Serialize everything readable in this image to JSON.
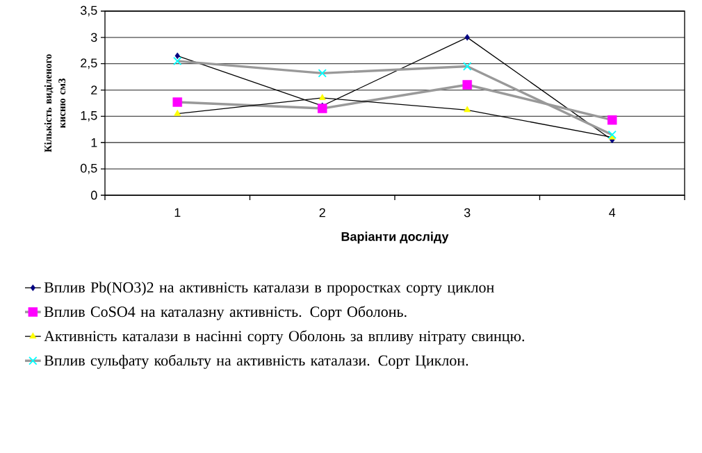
{
  "chart_data": {
    "type": "line",
    "xlabel": "Варіанти досліду",
    "ylabel": "Кількість виділеного кисню см3",
    "categories": [
      "1",
      "2",
      "3",
      "4"
    ],
    "series": [
      {
        "name": "Вплив Pb(NO3)2 на активність каталази в проростках сорту циклон",
        "color": "#000080",
        "marker": "diamond",
        "values": [
          2.65,
          1.7,
          3.0,
          1.05
        ]
      },
      {
        "name": "Вплив CoSO4 на каталазну активність. Сорт Оболонь.",
        "color": "#ff00ff",
        "marker": "square",
        "values": [
          1.77,
          1.65,
          2.1,
          1.43
        ]
      },
      {
        "name": "Активність каталази в насінні сорту Оболонь за впливу нітрату свинцю.",
        "color": "#ffff00",
        "marker": "triangle",
        "values": [
          1.55,
          1.85,
          1.62,
          1.1
        ]
      },
      {
        "name": "Вплив сульфату кобальту на активність каталази. Сорт Циклон.",
        "color": "#00ffff",
        "marker": "cross",
        "values": [
          2.55,
          2.32,
          2.45,
          1.15
        ]
      }
    ],
    "ylim": [
      0,
      3.5
    ],
    "yticks": [
      0,
      {
        "value": 0.5,
        "label": "0,5"
      },
      1,
      {
        "value": 1.5,
        "label": "1,5"
      },
      2,
      {
        "value": 2.5,
        "label": "2,5"
      },
      3,
      {
        "value": 3.5,
        "label": "3,5"
      }
    ],
    "grid": "y",
    "legend": "bottom"
  }
}
